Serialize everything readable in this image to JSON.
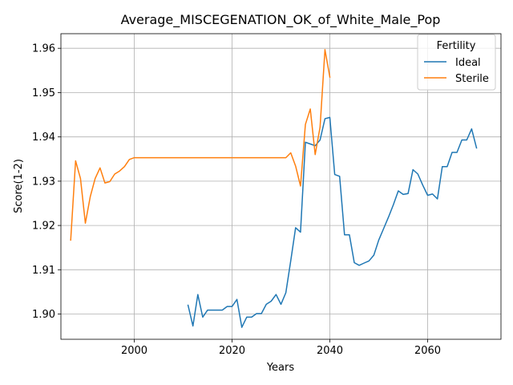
{
  "chart_data": {
    "type": "line",
    "title": "Average_MISCEGENATION_OK_of_White_Male_Pop",
    "xlabel": "Years",
    "ylabel": "Score(1-2)",
    "xlim": [
      1985,
      2075
    ],
    "ylim": [
      1.8943,
      1.9633
    ],
    "xticks": [
      2000,
      2020,
      2040,
      2060
    ],
    "yticks": [
      1.9,
      1.91,
      1.92,
      1.93,
      1.94,
      1.95,
      1.96
    ],
    "ytick_labels": [
      "1.90",
      "1.91",
      "1.92",
      "1.93",
      "1.94",
      "1.95",
      "1.96"
    ],
    "grid": true,
    "legend": {
      "title": "Fertility",
      "placement": "top-right"
    },
    "series": [
      {
        "name": "Ideal",
        "color": "#1f77b4",
        "x": [
          2011,
          2012,
          2013,
          2014,
          2015,
          2016,
          2017,
          2018,
          2019,
          2020,
          2021,
          2022,
          2023,
          2024,
          2025,
          2026,
          2027,
          2028,
          2029,
          2030,
          2031,
          2032,
          2033,
          2034,
          2035,
          2036,
          2037,
          2038,
          2039,
          2040,
          2041,
          2042,
          2043,
          2044,
          2045,
          2046,
          2047,
          2048,
          2049,
          2050,
          2051,
          2052,
          2053,
          2054,
          2055,
          2056,
          2057,
          2058,
          2059,
          2060,
          2061,
          2062,
          2063,
          2064,
          2065,
          2066,
          2067,
          2068,
          2069,
          2070
        ],
        "y": [
          1.902,
          1.8973,
          1.9044,
          1.8993,
          1.9009,
          1.9009,
          1.9009,
          1.9009,
          1.9017,
          1.9017,
          1.9033,
          1.897,
          1.8993,
          1.8993,
          1.9001,
          1.9001,
          1.9022,
          1.9029,
          1.9044,
          1.9022,
          1.9048,
          1.912,
          1.9195,
          1.9185,
          1.9388,
          1.9384,
          1.938,
          1.9393,
          1.9441,
          1.9444,
          1.9315,
          1.9311,
          1.9179,
          1.9179,
          1.9116,
          1.911,
          1.9115,
          1.912,
          1.9133,
          1.9167,
          1.9193,
          1.9219,
          1.9247,
          1.9278,
          1.927,
          1.9272,
          1.9326,
          1.9316,
          1.9291,
          1.9268,
          1.9271,
          1.926,
          1.9333,
          1.9333,
          1.9365,
          1.9365,
          1.9393,
          1.9393,
          1.9418,
          1.9375
        ]
      },
      {
        "name": "Sterile",
        "color": "#ff7f0e",
        "x": [
          1987,
          1988,
          1989,
          1990,
          1991,
          1992,
          1993,
          1994,
          1995,
          1996,
          1997,
          1998,
          1999,
          2000,
          2005,
          2010,
          2015,
          2020,
          2025,
          2030,
          2031,
          2032,
          2033,
          2034,
          2035,
          2036,
          2037,
          2038,
          2039,
          2040
        ],
        "y": [
          1.9167,
          1.9346,
          1.9306,
          1.9205,
          1.9265,
          1.9306,
          1.933,
          1.9296,
          1.9299,
          1.9316,
          1.9323,
          1.9333,
          1.9349,
          1.9353,
          1.9353,
          1.9353,
          1.9353,
          1.9353,
          1.9353,
          1.9353,
          1.9353,
          1.9364,
          1.9334,
          1.9289,
          1.9428,
          1.9463,
          1.936,
          1.9422,
          1.9597,
          1.9535
        ]
      }
    ]
  }
}
